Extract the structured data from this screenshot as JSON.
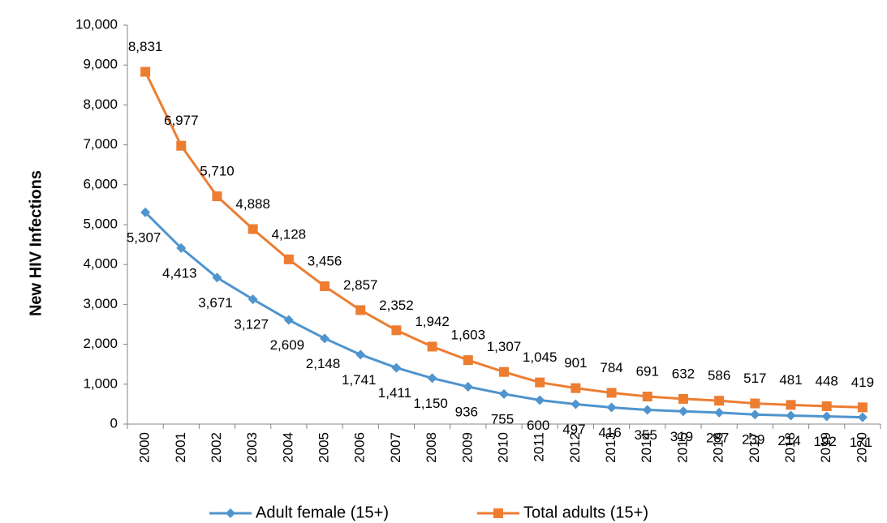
{
  "chart_data": {
    "type": "line",
    "y_label": "New HIV Infections",
    "categories": [
      "2000",
      "2001",
      "2002",
      "2003",
      "2004",
      "2005",
      "2006",
      "2007",
      "2008",
      "2009",
      "2010",
      "2011",
      "2012",
      "2013",
      "2014",
      "2015",
      "2016",
      "2017",
      "2018",
      "2019",
      "2020"
    ],
    "series": [
      {
        "name": "Adult female (15+)",
        "color": "#4f94cd",
        "marker": "diamond",
        "values": [
          5307,
          4413,
          3671,
          3127,
          2609,
          2148,
          1741,
          1411,
          1150,
          936,
          755,
          600,
          497,
          416,
          355,
          319,
          287,
          239,
          214,
          192,
          171
        ],
        "value_labels": [
          "5,307",
          "4,413",
          "3,671",
          "3,127",
          "2,609",
          "2,148",
          "1,741",
          "1,411",
          "1,150",
          "936",
          "755",
          "600",
          "497",
          "416",
          "355",
          "319",
          "287",
          "239",
          "214",
          "192",
          "171"
        ]
      },
      {
        "name": "Total adults (15+)",
        "color": "#ed7d31",
        "marker": "square",
        "values": [
          8831,
          6977,
          5710,
          4888,
          4128,
          3456,
          2857,
          2352,
          1942,
          1603,
          1307,
          1045,
          901,
          784,
          691,
          632,
          586,
          517,
          481,
          448,
          419
        ],
        "value_labels": [
          "8,831",
          "6,977",
          "5,710",
          "4,888",
          "4,128",
          "3,456",
          "2,857",
          "2,352",
          "1,942",
          "1,603",
          "1,307",
          "1,045",
          "901",
          "784",
          "691",
          "632",
          "586",
          "517",
          "481",
          "448",
          "419"
        ]
      }
    ],
    "ylim": [
      0,
      10000
    ],
    "yticks": [
      0,
      {
        "value": 1000,
        "label": "1,000"
      },
      {
        "value": 2000,
        "label": "2,000"
      },
      {
        "value": 3000,
        "label": "3,000"
      },
      {
        "value": 4000,
        "label": "4,000"
      },
      {
        "value": 5000,
        "label": "5,000"
      },
      {
        "value": 6000,
        "label": "6,000"
      },
      {
        "value": 7000,
        "label": "7,000"
      },
      {
        "value": 8000,
        "label": "8,000"
      },
      {
        "value": 9000,
        "label": "9,000"
      },
      {
        "value": 10000,
        "label": "10,000"
      }
    ],
    "grid": false,
    "legend": "bottom"
  }
}
